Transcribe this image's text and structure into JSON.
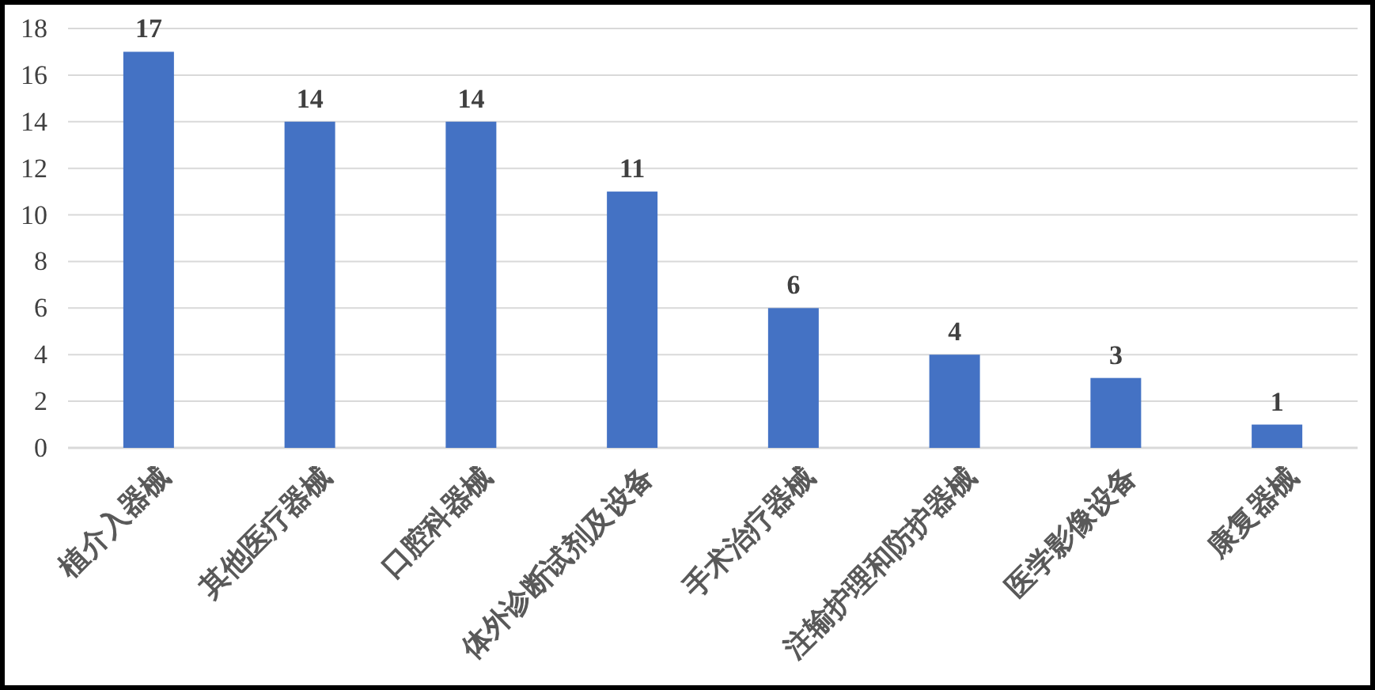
{
  "chart_data": {
    "type": "bar",
    "categories": [
      "植介入器械",
      "其他医疗器械",
      "口腔科器械",
      "体外诊断试剂及设备",
      "手术治疗器械",
      "注输护理和防护器械",
      "医学影像设备",
      "康复器械"
    ],
    "values": [
      17,
      14,
      14,
      11,
      6,
      4,
      3,
      1
    ],
    "color": "#4472c4",
    "ylim": [
      0,
      18
    ],
    "yticks": [
      0,
      2,
      4,
      6,
      8,
      10,
      12,
      14,
      16,
      18
    ],
    "grid": "y",
    "data_labels": true
  }
}
